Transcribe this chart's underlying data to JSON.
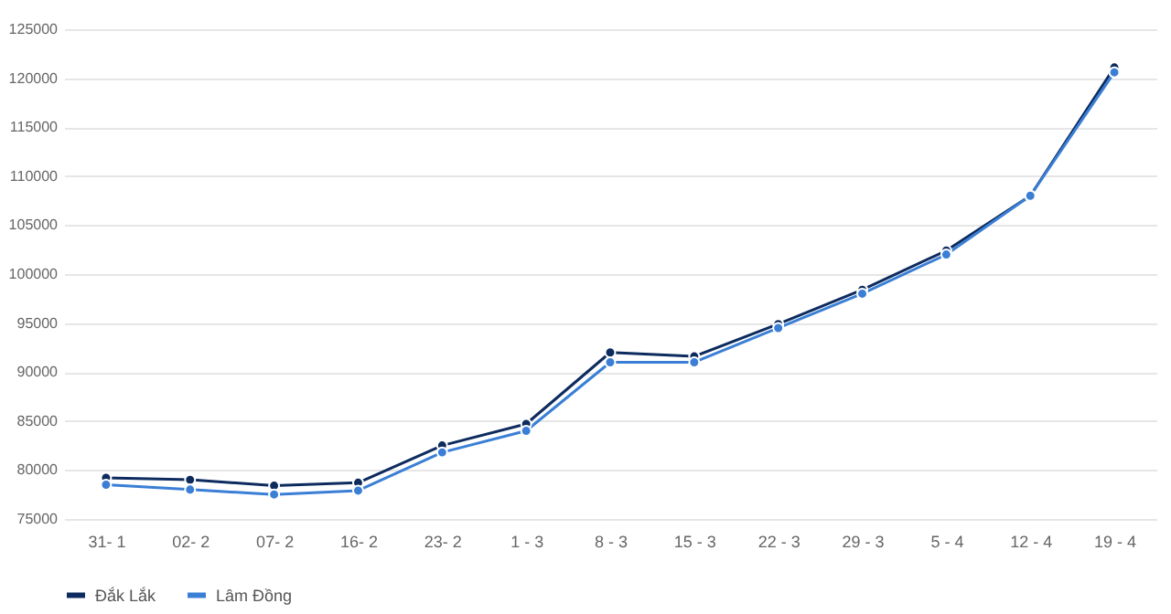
{
  "chart_data": {
    "type": "line",
    "categories": [
      "31- 1",
      "02- 2",
      "07- 2",
      "16- 2",
      "23- 2",
      "1 - 3",
      "8 - 3",
      "15 - 3",
      "22 - 3",
      "29 - 3",
      "5 - 4",
      "12 - 4",
      "19 - 4"
    ],
    "series": [
      {
        "name": "Đắk Lắk",
        "color": "#0d2b5e",
        "values": [
          79200,
          79000,
          78400,
          78700,
          82500,
          84700,
          92000,
          91600,
          94900,
          98400,
          102400,
          108000,
          121100
        ]
      },
      {
        "name": "Lâm Đồng",
        "color": "#3a7fd5",
        "values": [
          78500,
          78000,
          77500,
          77900,
          81800,
          84000,
          91000,
          91000,
          94500,
          98000,
          102000,
          108000,
          120600
        ]
      }
    ],
    "ylim": [
      75000,
      125000
    ],
    "yticks": [
      75000,
      80000,
      85000,
      90000,
      95000,
      100000,
      105000,
      110000,
      115000,
      120000,
      125000
    ],
    "grid": "y",
    "legend": "bottom",
    "marker": "circle",
    "line_style": "solid"
  }
}
